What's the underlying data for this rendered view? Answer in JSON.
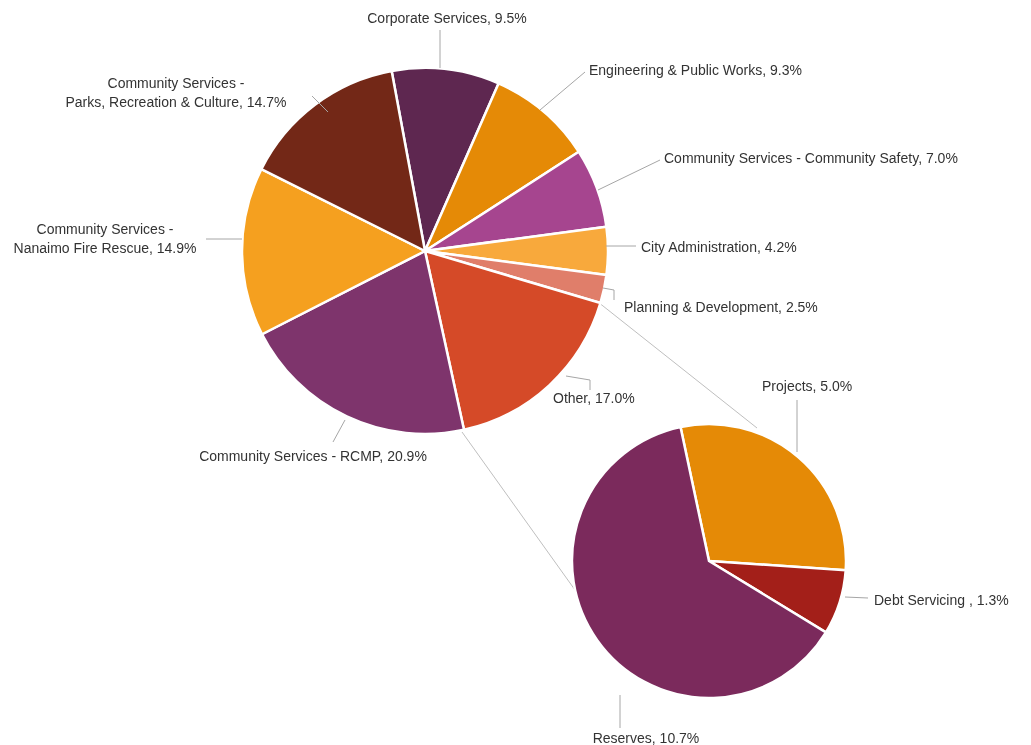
{
  "chart_data": [
    {
      "type": "pie",
      "categories": [
        "Corporate Services",
        "Engineering & Public Works",
        "Community Services - Community Safety",
        "City Administration",
        "Planning & Development",
        "Other",
        "Community Services - RCMP",
        "Community Services - Nanaimo Fire Rescue",
        "Community Services - Parks, Recreation & Culture"
      ],
      "values": [
        9.5,
        9.3,
        7.0,
        4.2,
        2.5,
        17.0,
        20.9,
        14.9,
        14.7
      ],
      "value_labels": [
        "9.5%",
        "9.3%",
        "7.0%",
        "4.2%",
        "2.5%",
        "17.0%",
        "20.9%",
        "14.9%",
        "14.7%"
      ],
      "colors": [
        "#5e2750",
        "#e58a06",
        "#a6458f",
        "#f8a93c",
        "#e07e6a",
        "#d54a28",
        "#7e346c",
        "#f5a01f",
        "#732817"
      ]
    },
    {
      "type": "pie",
      "categories": [
        "Projects",
        "Debt Servicing ",
        "Reserves"
      ],
      "values": [
        5.0,
        1.3,
        10.7
      ],
      "value_labels": [
        "5.0%",
        "1.3%",
        "10.7%"
      ],
      "colors": [
        "#e58a06",
        "#a31f19",
        "#7b2a5c"
      ]
    }
  ]
}
